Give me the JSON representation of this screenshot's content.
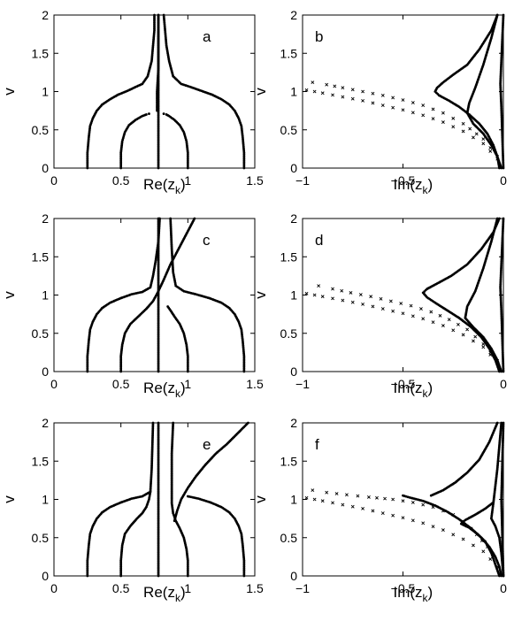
{
  "chart_data": [
    {
      "type": "scatter",
      "panel": "a",
      "xlabel": "Re(z",
      "xlabel_sub": "k",
      "xlabel_close": ")",
      "ylabel": "v",
      "xlim": [
        0,
        1.5
      ],
      "ylim": [
        0,
        2
      ],
      "xticks": [
        "0",
        "0.5",
        "1",
        "1.5"
      ],
      "yticks": [
        "0",
        "0.5",
        "1",
        "1.5",
        "2"
      ],
      "grid": false,
      "series": [
        {
          "marker": "dot",
          "x": [
            0.25,
            0.25,
            0.26,
            0.27,
            0.29,
            0.32,
            0.36,
            0.42,
            0.48,
            0.55,
            0.61,
            0.66,
            0.7,
            0.73,
            0.74,
            0.75,
            0.75
          ],
          "y": [
            0.0,
            0.2,
            0.4,
            0.55,
            0.65,
            0.75,
            0.83,
            0.9,
            0.96,
            1.01,
            1.06,
            1.1,
            1.2,
            1.4,
            1.6,
            1.8,
            2.0
          ]
        },
        {
          "marker": "dot",
          "x": [
            1.42,
            1.42,
            1.41,
            1.4,
            1.38,
            1.35,
            1.31,
            1.25,
            1.18,
            1.1,
            1.02,
            0.95,
            0.89,
            0.86,
            0.84,
            0.83,
            0.82
          ],
          "y": [
            0.0,
            0.2,
            0.4,
            0.55,
            0.65,
            0.75,
            0.83,
            0.9,
            0.96,
            1.01,
            1.06,
            1.1,
            1.2,
            1.4,
            1.6,
            1.8,
            2.0
          ]
        },
        {
          "marker": "dot",
          "x": [
            0.5,
            0.5,
            0.51,
            0.53,
            0.56,
            0.61,
            0.66,
            0.69,
            0.71
          ],
          "y": [
            0.0,
            0.2,
            0.35,
            0.47,
            0.56,
            0.63,
            0.68,
            0.7,
            0.71
          ]
        },
        {
          "marker": "dot",
          "x": [
            1.0,
            1.0,
            0.99,
            0.97,
            0.94,
            0.9,
            0.86,
            0.84,
            0.82
          ],
          "y": [
            0.0,
            0.2,
            0.35,
            0.47,
            0.56,
            0.63,
            0.68,
            0.7,
            0.71
          ]
        },
        {
          "marker": "dot",
          "x": [
            0.78,
            0.78,
            0.78,
            0.78,
            0.78,
            0.78
          ],
          "y": [
            0.0,
            0.4,
            0.8,
            1.2,
            1.6,
            2.0
          ]
        },
        {
          "marker": "dot",
          "x": [
            0.77,
            0.77,
            0.78,
            0.78,
            0.78
          ],
          "y": [
            0.75,
            1.0,
            1.3,
            1.6,
            2.0
          ]
        }
      ]
    },
    {
      "type": "scatter",
      "panel": "b",
      "xlabel": "Im(z",
      "xlabel_sub": "k",
      "xlabel_close": ")",
      "ylabel": "v",
      "xlim": [
        -1,
        0
      ],
      "ylim": [
        0,
        2
      ],
      "xticks": [
        "−1",
        "−0.5",
        "0"
      ],
      "yticks": [
        "0",
        "0.5",
        "1",
        "1.5",
        "2"
      ],
      "grid": false,
      "series": [
        {
          "marker": "dot",
          "x": [
            -0.02,
            -0.03,
            -0.05,
            -0.08,
            -0.12,
            -0.17,
            -0.22,
            -0.27,
            -0.32,
            -0.34,
            -0.33,
            -0.3,
            -0.25,
            -0.18,
            -0.12,
            -0.06,
            -0.03
          ],
          "y": [
            0.0,
            0.15,
            0.3,
            0.45,
            0.58,
            0.7,
            0.8,
            0.88,
            0.95,
            1.0,
            1.05,
            1.12,
            1.22,
            1.35,
            1.55,
            1.8,
            2.0
          ]
        },
        {
          "marker": "dot",
          "x": [
            -0.01,
            -0.03,
            -0.06,
            -0.1,
            -0.15,
            -0.18,
            -0.17,
            -0.14,
            -0.1,
            -0.06,
            -0.03
          ],
          "y": [
            0.0,
            0.15,
            0.3,
            0.45,
            0.58,
            0.72,
            0.85,
            1.05,
            1.35,
            1.7,
            2.0
          ]
        },
        {
          "marker": "dot",
          "x": [
            0.0,
            -0.005,
            -0.01,
            -0.015,
            -0.01,
            -0.005,
            0.0
          ],
          "y": [
            0.0,
            0.4,
            0.8,
            1.1,
            1.4,
            1.7,
            2.0
          ]
        },
        {
          "marker": "cross",
          "x": [
            -0.95,
            -0.88,
            -0.8,
            -0.7,
            -0.6,
            -0.5,
            -0.4,
            -0.3,
            -0.2,
            -0.1,
            -0.03
          ],
          "y": [
            1.12,
            1.09,
            1.05,
            1.0,
            0.95,
            0.89,
            0.82,
            0.72,
            0.58,
            0.38,
            0.15
          ]
        },
        {
          "marker": "cross",
          "x": [
            -0.98,
            -0.9,
            -0.8,
            -0.7,
            -0.6,
            -0.5,
            -0.4,
            -0.3,
            -0.2,
            -0.1,
            -0.03
          ],
          "y": [
            1.02,
            0.98,
            0.93,
            0.88,
            0.82,
            0.76,
            0.69,
            0.6,
            0.48,
            0.32,
            0.12
          ]
        }
      ]
    },
    {
      "type": "scatter",
      "panel": "c",
      "xlabel": "Re(z",
      "xlabel_sub": "k",
      "xlabel_close": ")",
      "ylabel": "v",
      "xlim": [
        0,
        1.5
      ],
      "ylim": [
        0,
        2
      ],
      "xticks": [
        "0",
        "0.5",
        "1",
        "1.5"
      ],
      "yticks": [
        "0",
        "0.5",
        "1",
        "1.5",
        "2"
      ],
      "grid": false,
      "series": [
        {
          "marker": "dot",
          "x": [
            0.25,
            0.25,
            0.26,
            0.27,
            0.29,
            0.32,
            0.36,
            0.42,
            0.5,
            0.58,
            0.66,
            0.72,
            0.74,
            0.76,
            0.78,
            0.79
          ],
          "y": [
            0.0,
            0.2,
            0.4,
            0.55,
            0.65,
            0.75,
            0.83,
            0.9,
            0.96,
            1.01,
            1.04,
            1.1,
            1.25,
            1.45,
            1.7,
            2.0
          ]
        },
        {
          "marker": "dot",
          "x": [
            1.42,
            1.42,
            1.41,
            1.4,
            1.38,
            1.35,
            1.31,
            1.25,
            1.16,
            1.06,
            0.97,
            0.91,
            0.89,
            0.88,
            0.87
          ],
          "y": [
            0.0,
            0.2,
            0.4,
            0.55,
            0.65,
            0.75,
            0.83,
            0.9,
            0.96,
            1.01,
            1.05,
            1.12,
            1.3,
            1.6,
            2.0
          ]
        },
        {
          "marker": "dot",
          "x": [
            0.5,
            0.5,
            0.51,
            0.53,
            0.57,
            0.63,
            0.69,
            0.74,
            0.78,
            0.82,
            0.87,
            0.93,
            0.99,
            1.05
          ],
          "y": [
            0.0,
            0.2,
            0.35,
            0.5,
            0.62,
            0.72,
            0.82,
            0.92,
            1.05,
            1.2,
            1.4,
            1.6,
            1.8,
            2.0
          ]
        },
        {
          "marker": "dot",
          "x": [
            1.0,
            1.0,
            0.99,
            0.97,
            0.94,
            0.9,
            0.87,
            0.85
          ],
          "y": [
            0.0,
            0.2,
            0.35,
            0.5,
            0.62,
            0.72,
            0.8,
            0.85
          ]
        },
        {
          "marker": "dot",
          "x": [
            0.78,
            0.78,
            0.78,
            0.78,
            0.78,
            0.78
          ],
          "y": [
            0.0,
            0.4,
            0.8,
            1.2,
            1.6,
            2.0
          ]
        }
      ]
    },
    {
      "type": "scatter",
      "panel": "d",
      "xlabel": "Im(z",
      "xlabel_sub": "k",
      "xlabel_close": ")",
      "ylabel": "v",
      "xlim": [
        -1,
        0
      ],
      "ylim": [
        0,
        2
      ],
      "xticks": [
        "−1",
        "−0.5",
        "0"
      ],
      "yticks": [
        "0",
        "0.5",
        "1",
        "1.5",
        "2"
      ],
      "grid": false,
      "series": [
        {
          "marker": "dot",
          "x": [
            -0.02,
            -0.04,
            -0.07,
            -0.11,
            -0.16,
            -0.22,
            -0.28,
            -0.34,
            -0.38,
            -0.4,
            -0.38,
            -0.33,
            -0.26,
            -0.18,
            -0.11,
            -0.05,
            -0.02
          ],
          "y": [
            0.0,
            0.15,
            0.3,
            0.45,
            0.58,
            0.7,
            0.8,
            0.9,
            0.97,
            1.03,
            1.08,
            1.15,
            1.25,
            1.4,
            1.6,
            1.82,
            2.0
          ]
        },
        {
          "marker": "dot",
          "x": [
            -0.01,
            -0.03,
            -0.06,
            -0.1,
            -0.15,
            -0.19,
            -0.18,
            -0.14,
            -0.1,
            -0.06,
            -0.03
          ],
          "y": [
            0.0,
            0.15,
            0.3,
            0.45,
            0.58,
            0.7,
            0.85,
            1.05,
            1.35,
            1.7,
            2.0
          ]
        },
        {
          "marker": "dot",
          "x": [
            0.0,
            -0.005,
            -0.01,
            -0.015,
            -0.01,
            -0.005,
            0.0
          ],
          "y": [
            0.0,
            0.4,
            0.8,
            1.1,
            1.4,
            1.7,
            2.0
          ]
        },
        {
          "marker": "cross",
          "x": [
            -0.92,
            -0.85,
            -0.76,
            -0.66,
            -0.56,
            -0.46,
            -0.36,
            -0.27,
            -0.18,
            -0.1,
            -0.03
          ],
          "y": [
            1.12,
            1.08,
            1.03,
            0.98,
            0.92,
            0.86,
            0.78,
            0.68,
            0.55,
            0.36,
            0.14
          ]
        },
        {
          "marker": "cross",
          "x": [
            -0.98,
            -0.9,
            -0.8,
            -0.7,
            -0.6,
            -0.5,
            -0.4,
            -0.3,
            -0.2,
            -0.1,
            -0.03
          ],
          "y": [
            1.02,
            0.98,
            0.93,
            0.88,
            0.82,
            0.76,
            0.69,
            0.6,
            0.48,
            0.32,
            0.12
          ]
        }
      ]
    },
    {
      "type": "scatter",
      "panel": "e",
      "xlabel": "Re(z",
      "xlabel_sub": "k",
      "xlabel_close": ")",
      "ylabel": "v",
      "xlim": [
        0,
        1.5
      ],
      "ylim": [
        0,
        2
      ],
      "xticks": [
        "0",
        "0.5",
        "1",
        "1.5"
      ],
      "yticks": [
        "0",
        "0.5",
        "1",
        "1.5",
        "2"
      ],
      "grid": false,
      "series": [
        {
          "marker": "dot",
          "x": [
            0.25,
            0.25,
            0.26,
            0.27,
            0.29,
            0.32,
            0.36,
            0.42,
            0.5,
            0.58,
            0.66,
            0.72,
            0.73,
            0.74
          ],
          "y": [
            0.0,
            0.2,
            0.4,
            0.55,
            0.65,
            0.75,
            0.83,
            0.9,
            0.96,
            1.01,
            1.04,
            1.1,
            1.4,
            2.0
          ]
        },
        {
          "marker": "dot",
          "x": [
            1.42,
            1.42,
            1.41,
            1.4,
            1.38,
            1.35,
            1.31,
            1.25,
            1.17,
            1.08,
            1.0
          ],
          "y": [
            0.0,
            0.2,
            0.4,
            0.55,
            0.65,
            0.75,
            0.83,
            0.9,
            0.96,
            1.01,
            1.04
          ]
        },
        {
          "marker": "dot",
          "x": [
            0.5,
            0.5,
            0.51,
            0.53,
            0.57,
            0.62,
            0.66,
            0.69,
            0.71,
            0.72
          ],
          "y": [
            0.0,
            0.2,
            0.4,
            0.55,
            0.65,
            0.75,
            0.82,
            0.9,
            1.0,
            1.1
          ]
        },
        {
          "marker": "dot",
          "x": [
            1.0,
            1.0,
            0.99,
            0.97,
            0.94,
            0.91,
            0.89,
            0.88,
            0.88,
            0.88,
            0.89
          ],
          "y": [
            0.0,
            0.2,
            0.35,
            0.5,
            0.62,
            0.72,
            0.82,
            0.95,
            1.2,
            1.6,
            2.0
          ]
        },
        {
          "marker": "dot",
          "x": [
            0.78,
            0.78,
            0.78,
            0.78,
            0.78,
            0.78
          ],
          "y": [
            0.0,
            0.4,
            0.8,
            1.2,
            1.6,
            2.0
          ]
        },
        {
          "marker": "dot",
          "x": [
            0.9,
            0.92,
            0.95,
            1.0,
            1.06,
            1.13,
            1.21,
            1.29,
            1.37,
            1.45
          ],
          "y": [
            0.72,
            0.85,
            1.0,
            1.15,
            1.3,
            1.45,
            1.6,
            1.72,
            1.86,
            2.0
          ]
        }
      ]
    },
    {
      "type": "scatter",
      "panel": "f",
      "xlabel": "Im(z",
      "xlabel_sub": "k",
      "xlabel_close": ")",
      "ylabel": "v",
      "xlim": [
        -1,
        0
      ],
      "ylim": [
        0,
        2
      ],
      "xticks": [
        "−1",
        "−0.5",
        "0"
      ],
      "yticks": [
        "0",
        "0.5",
        "1",
        "1.5",
        "2"
      ],
      "grid": false,
      "series": [
        {
          "marker": "dot",
          "x": [
            -0.02,
            -0.04,
            -0.06,
            -0.09,
            -0.13,
            -0.17,
            -0.21,
            -0.19,
            -0.14,
            -0.09,
            -0.05
          ],
          "y": [
            0.0,
            0.15,
            0.3,
            0.45,
            0.55,
            0.63,
            0.68,
            0.73,
            0.8,
            0.88,
            0.96
          ]
        },
        {
          "marker": "dot",
          "x": [
            -0.01,
            -0.02,
            -0.04,
            -0.07,
            -0.11,
            -0.16,
            -0.22,
            -0.28,
            -0.34,
            -0.4,
            -0.46,
            -0.5
          ],
          "y": [
            0.0,
            0.12,
            0.25,
            0.38,
            0.5,
            0.62,
            0.74,
            0.84,
            0.92,
            0.98,
            1.02,
            1.05
          ]
        },
        {
          "marker": "dot",
          "x": [
            -0.36,
            -0.3,
            -0.24,
            -0.18,
            -0.12,
            -0.07,
            -0.03
          ],
          "y": [
            1.05,
            1.12,
            1.22,
            1.35,
            1.52,
            1.75,
            2.0
          ]
        },
        {
          "marker": "dot",
          "x": [
            0.0,
            -0.01,
            -0.02,
            -0.04,
            -0.06,
            -0.05,
            -0.03,
            -0.01
          ],
          "y": [
            0.0,
            0.3,
            0.5,
            0.65,
            0.75,
            0.95,
            1.4,
            2.0
          ]
        },
        {
          "marker": "dot",
          "x": [
            0.0,
            -0.005,
            -0.01,
            -0.005,
            0.0
          ],
          "y": [
            0.0,
            0.5,
            1.0,
            1.5,
            2.0
          ]
        },
        {
          "marker": "cross",
          "x": [
            -0.95,
            -0.88,
            -0.78,
            -0.67,
            -0.55,
            -0.45,
            -0.35,
            -0.25,
            -0.16,
            -0.08
          ],
          "y": [
            1.12,
            1.09,
            1.06,
            1.03,
            1.0,
            0.96,
            0.9,
            0.8,
            0.62,
            0.38
          ]
        },
        {
          "marker": "cross",
          "x": [
            -0.98,
            -0.9,
            -0.8,
            -0.7,
            -0.6,
            -0.5,
            -0.4,
            -0.3,
            -0.2,
            -0.1,
            -0.03
          ],
          "y": [
            1.02,
            0.98,
            0.93,
            0.88,
            0.82,
            0.76,
            0.69,
            0.6,
            0.48,
            0.32,
            0.12
          ]
        }
      ]
    }
  ]
}
